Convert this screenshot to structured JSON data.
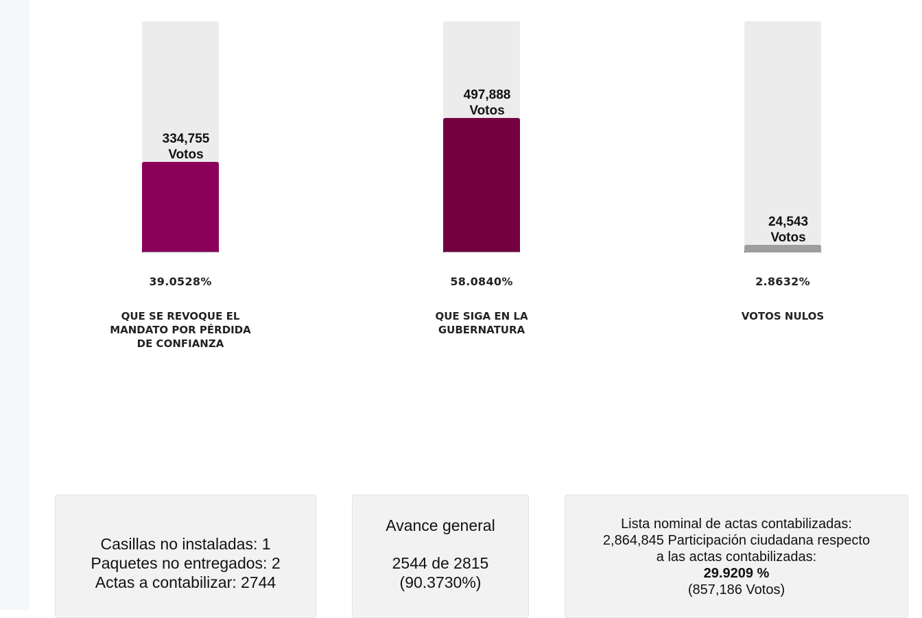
{
  "candidates": [
    {
      "votes": "334,755",
      "votes_unit": "Votos",
      "percent": "39.0528%",
      "name": "QUE SE REVOQUE EL MANDATO POR PÉRDIDA DE CONFIANZA",
      "bar_fraction": 0.39,
      "color": "#8b0059"
    },
    {
      "votes": "497,888",
      "votes_unit": "Votos",
      "percent": "58.0840%",
      "name": "QUE SIGA EN LA GUBERNATURA",
      "bar_fraction": 0.58,
      "color": "#730041"
    },
    {
      "votes": "24,543",
      "votes_unit": "Votos",
      "percent": "2.8632%",
      "name": "VOTOS NULOS",
      "bar_fraction": 0.0286,
      "color": "#9e9e9e"
    }
  ],
  "casillas": {
    "no_instaladas": "Casillas no instaladas: 1",
    "paquetes": "Paquetes no entregados: 2",
    "actas": "Actas a contabilizar: 2744"
  },
  "avance": {
    "title": "Avance general",
    "count": "2544 de 2815",
    "percent": "(90.3730%)"
  },
  "lista": {
    "line1": "Lista nominal de actas contabilizadas:",
    "line2": "2,864,845 Participación ciudadana respecto",
    "line3": "a las actas contabilizadas:",
    "participacion": "29.9209 %",
    "votos": "(857,186 Votos)"
  }
}
